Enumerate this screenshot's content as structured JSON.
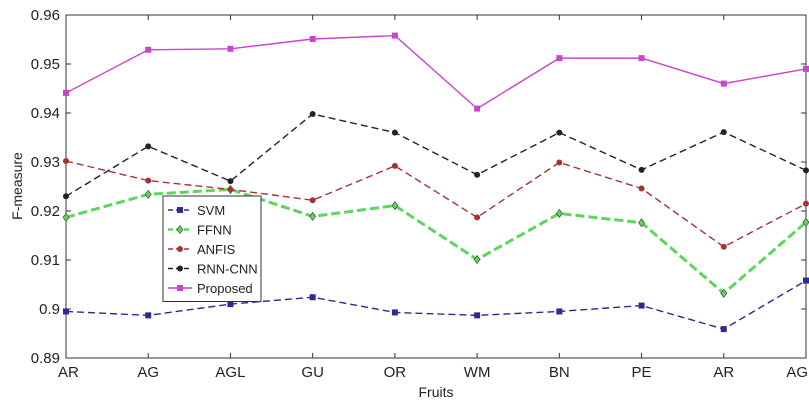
{
  "chart_data": {
    "type": "line",
    "xlabel": "Fruits",
    "ylabel": "F-measure",
    "categories": [
      "AR",
      "AG",
      "AGL",
      "GU",
      "OR",
      "WM",
      "BN",
      "PE",
      "AR",
      "AG"
    ],
    "ylim": [
      0.89,
      0.96
    ],
    "yticks": [
      "0.89",
      "0.9",
      "0.91",
      "0.92",
      "0.93",
      "0.94",
      "0.95",
      "0.96"
    ],
    "grid": false,
    "legend_position": "left-center",
    "series": [
      {
        "name": "SVM",
        "color": "#2b2b8f",
        "marker": "square",
        "dash": "dashed",
        "values": [
          0.8995,
          0.8987,
          0.901,
          0.9024,
          0.8993,
          0.8987,
          0.8995,
          0.9007,
          0.8959,
          0.9058
        ]
      },
      {
        "name": "FFNN",
        "color": "#5cd65c",
        "marker": "diamond",
        "dash": "dashed",
        "values": [
          0.9187,
          0.9234,
          0.9244,
          0.9189,
          0.9211,
          0.9101,
          0.9195,
          0.9176,
          0.9032,
          0.9177
        ]
      },
      {
        "name": "ANFIS",
        "color": "#a83232",
        "marker": "circle",
        "dash": "dashed",
        "values": [
          0.9302,
          0.9262,
          0.9244,
          0.9222,
          0.9292,
          0.9187,
          0.9299,
          0.9246,
          0.9127,
          0.9215
        ]
      },
      {
        "name": "RNN-CNN",
        "color": "#222222",
        "marker": "circle",
        "dash": "dashed",
        "values": [
          0.923,
          0.9332,
          0.9261,
          0.9398,
          0.936,
          0.9274,
          0.936,
          0.9284,
          0.9361,
          0.9283
        ]
      },
      {
        "name": "Proposed",
        "color": "#cc44cc",
        "marker": "square",
        "dash": "solid",
        "values": [
          0.9441,
          0.9529,
          0.9531,
          0.9551,
          0.9558,
          0.9409,
          0.9512,
          0.9512,
          0.946,
          0.949
        ]
      }
    ]
  }
}
